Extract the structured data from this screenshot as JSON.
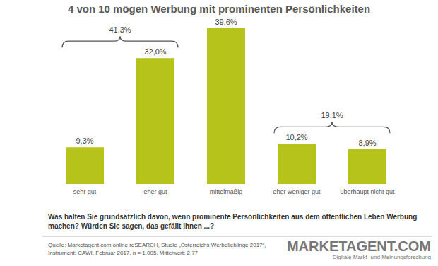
{
  "chart_data": {
    "type": "bar",
    "title": "4 von 10 mögen Werbung mit prominenten Persönlichkeiten",
    "categories": [
      "sehr gut",
      "eher gut",
      "mittelmäßig",
      "eher weniger gut",
      "überhaupt nicht gut"
    ],
    "values": [
      9.3,
      32.0,
      39.6,
      10.2,
      8.9
    ],
    "value_labels": [
      "9,3%",
      "32,0%",
      "39,6%",
      "10,2%",
      "8,9%"
    ],
    "color": "#b5c31a",
    "data_labels": true,
    "tick_labels": "x",
    "annotations": [
      {
        "label": "41,3%",
        "value": 41.3,
        "categories": [
          "sehr gut",
          "eher gut"
        ]
      },
      {
        "label": "19,1%",
        "value": 19.1,
        "categories": [
          "eher weniger gut",
          "überhaupt nicht gut"
        ]
      }
    ],
    "question": "Was halten Sie grundsätzlich davon, wenn prominente Persönlichkeiten aus dem öffentlichen Leben Werbung machen? Würden Sie sagen, das gefällt Ihnen ...?",
    "source": [
      "Quelle: Marketagent.com online reSEARCH, Studie „Österreichs Werbelieblinge 2017“,",
      "Instrument: CAWI, Februar 2017, n = 1.005, Mittelwert: 2,77"
    ],
    "logo": {
      "name": "MARKETAGENT.COM",
      "tagline": "Digitale Markt- und Meinungsforschung"
    }
  }
}
